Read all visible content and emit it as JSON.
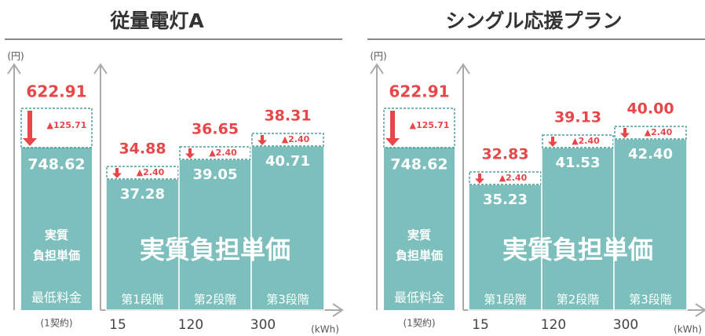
{
  "panels": [
    {
      "title": "従量電灯A",
      "unit": "(円)",
      "xunit": "(kWh)",
      "big_label": "実質負担単価",
      "base": {
        "price": "622.91",
        "discount": "▲125.71",
        "actual": "748.62",
        "label_lines": [
          "実質",
          "負担単価"
        ],
        "name": "最低料金",
        "note": "(1契約)"
      },
      "tiers": [
        {
          "price": "34.88",
          "discount": "▲2.40",
          "actual": "37.28",
          "name": "第1段階",
          "start": "15"
        },
        {
          "price": "36.65",
          "discount": "▲2.40",
          "actual": "39.05",
          "name": "第2段階",
          "start": "120"
        },
        {
          "price": "38.31",
          "discount": "▲2.40",
          "actual": "40.71",
          "name": "第3段階",
          "start": "300"
        }
      ]
    },
    {
      "title": "シングル応援プラン",
      "unit": "(円)",
      "xunit": "(kWh)",
      "big_label": "実質負担単価",
      "base": {
        "price": "622.91",
        "discount": "▲125.71",
        "actual": "748.62",
        "label_lines": [
          "実質",
          "負担単価"
        ],
        "name": "最低料金",
        "note": "(1契約)"
      },
      "tiers": [
        {
          "price": "32.83",
          "discount": "▲2.40",
          "actual": "35.23",
          "name": "第1段階",
          "start": "15"
        },
        {
          "price": "39.13",
          "discount": "▲2.40",
          "actual": "41.53",
          "name": "第2段階",
          "start": "120"
        },
        {
          "price": "40.00",
          "discount": "▲2.40",
          "actual": "42.40",
          "name": "第3段階",
          "start": "300"
        }
      ]
    }
  ]
}
